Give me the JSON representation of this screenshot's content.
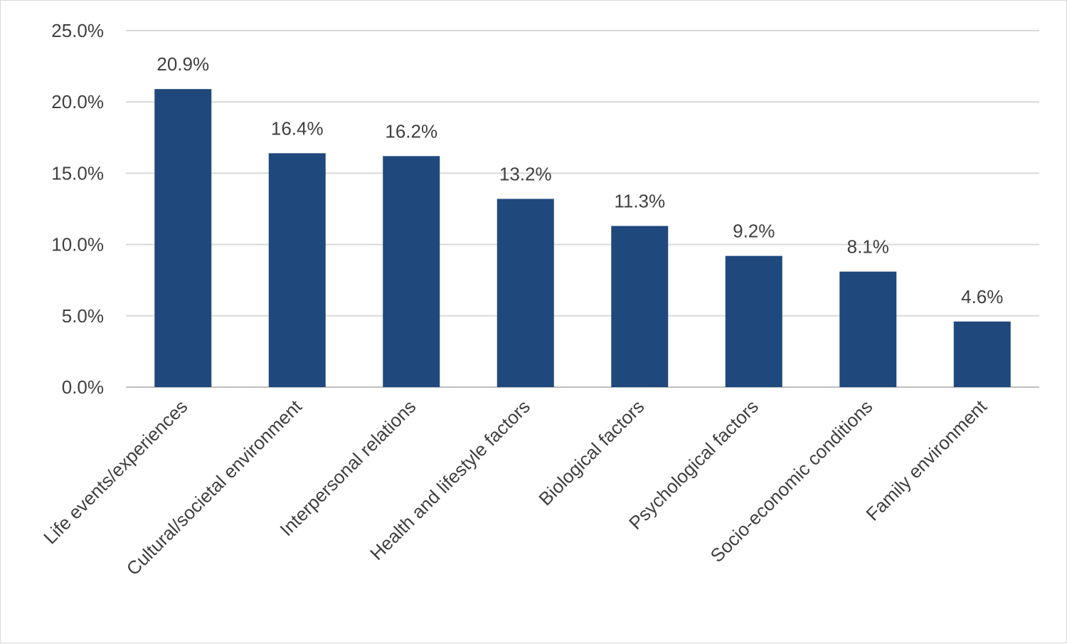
{
  "chart_data": {
    "type": "bar",
    "title": "",
    "xlabel": "",
    "ylabel": "",
    "categories": [
      "Life events/experiences",
      "Cultural/societal environment",
      "Interpersonal relations",
      "Health and lifestyle factors",
      "Biological factors",
      "Psychological factors",
      "Socio-economic conditions",
      "Family environment"
    ],
    "values": [
      20.9,
      16.4,
      16.2,
      13.2,
      11.3,
      9.2,
      8.1,
      4.6
    ],
    "data_labels": [
      "20.9%",
      "16.4%",
      "16.2%",
      "13.2%",
      "11.3%",
      "9.2%",
      "8.1%",
      "4.6%"
    ],
    "ylim": [
      0,
      25
    ],
    "yticks": [
      0,
      5,
      10,
      15,
      20,
      25
    ],
    "ytick_labels": [
      "0.0%",
      "5.0%",
      "10.0%",
      "15.0%",
      "20.0%",
      "25.0%"
    ],
    "grid": true,
    "legend": "none",
    "bar_color": "#1f497d",
    "grid_color": "#d9d9d9",
    "text_color": "#404040"
  }
}
